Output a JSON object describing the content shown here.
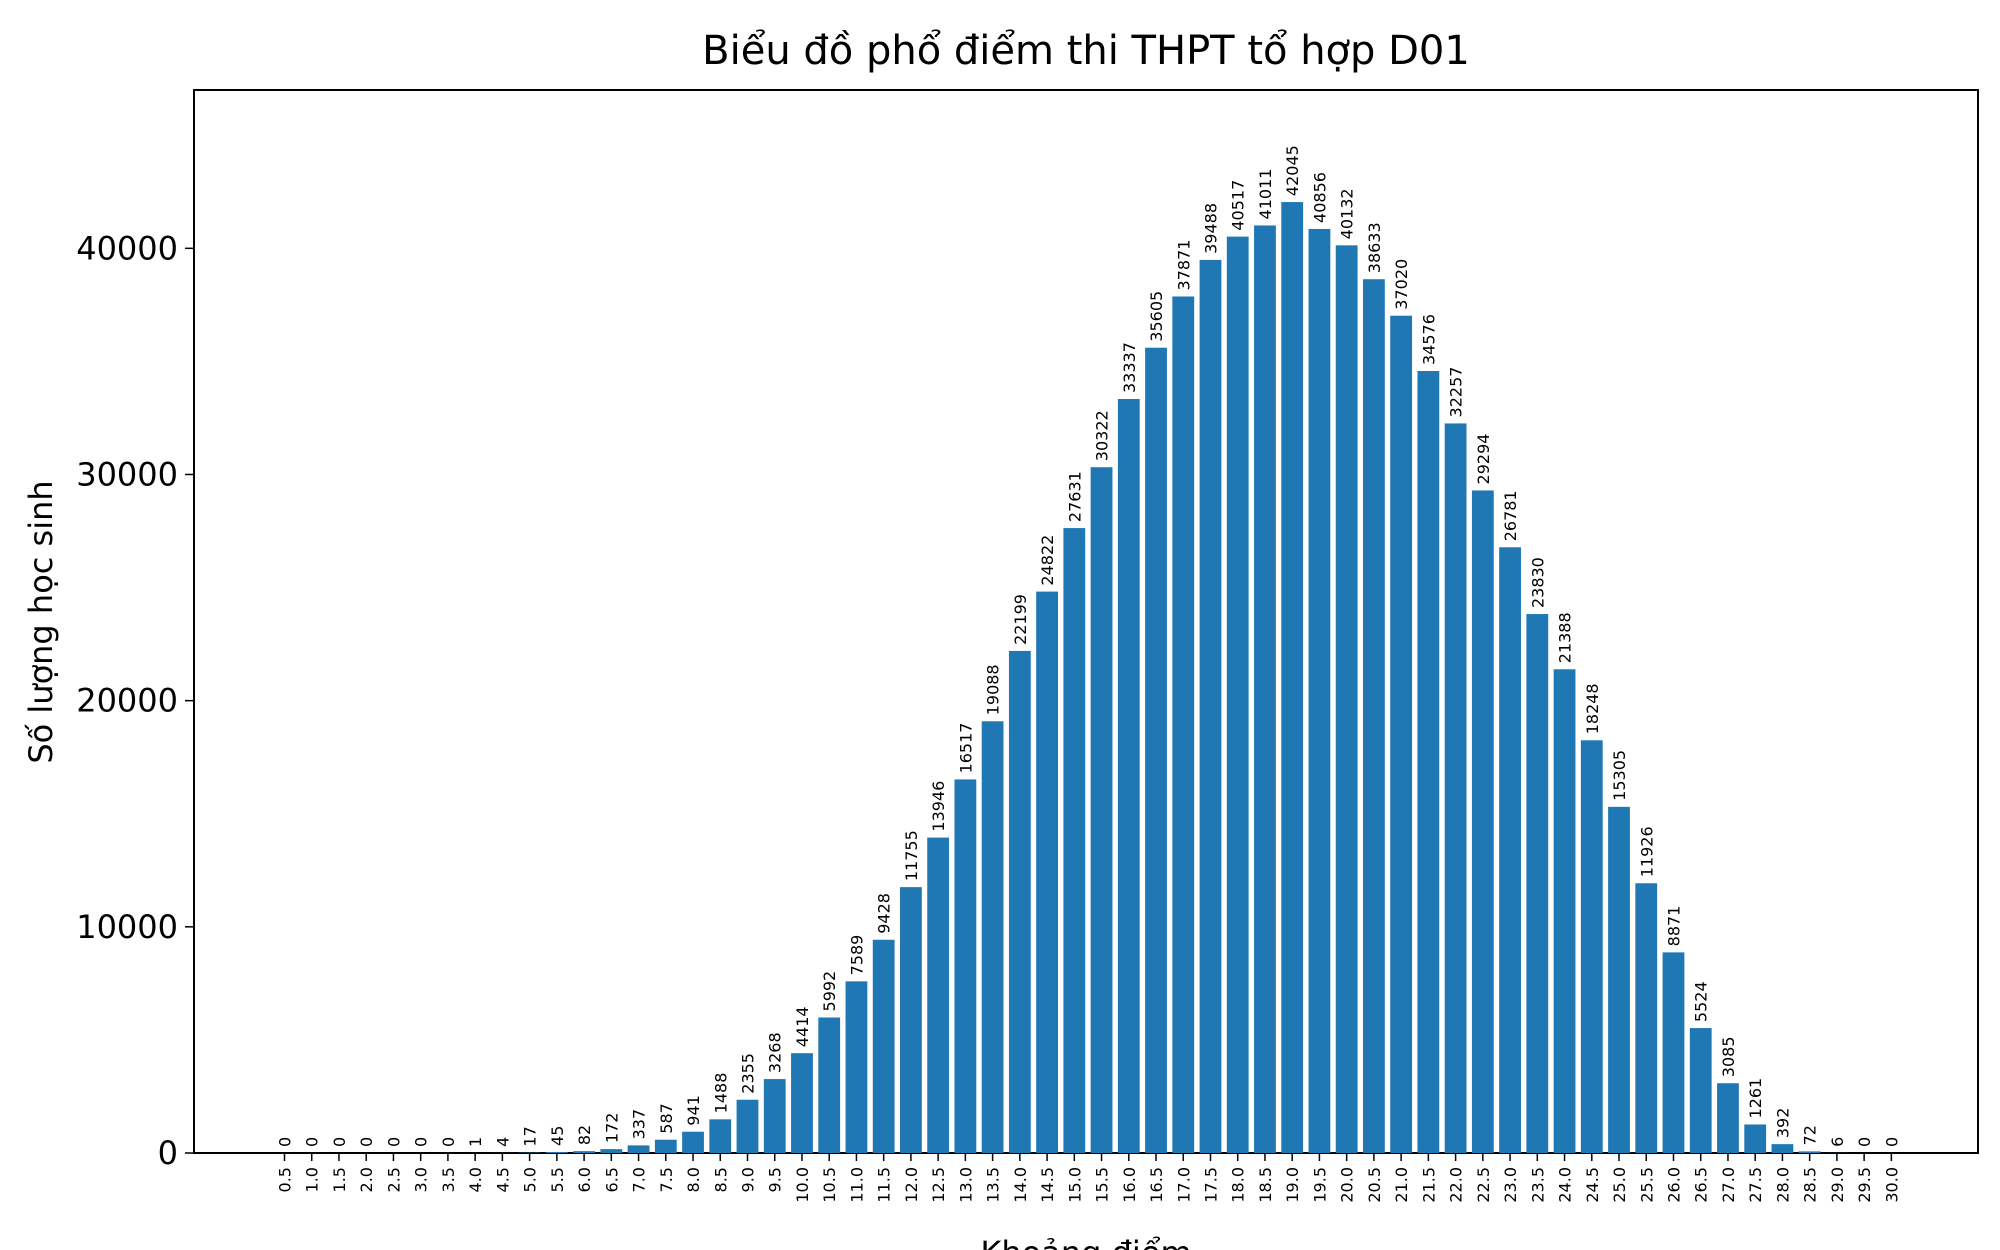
{
  "chart_data": {
    "type": "bar",
    "title": "Biểu đồ phổ điểm thi THPT tổ hợp D01",
    "xlabel": "Khoảng điểm",
    "ylabel": "Số lượng học sinh",
    "categories": [
      "0.5",
      "1.0",
      "1.5",
      "2.0",
      "2.5",
      "3.0",
      "3.5",
      "4.0",
      "4.5",
      "5.0",
      "5.5",
      "6.0",
      "6.5",
      "7.0",
      "7.5",
      "8.0",
      "8.5",
      "9.0",
      "9.5",
      "10.0",
      "10.5",
      "11.0",
      "11.5",
      "12.0",
      "12.5",
      "13.0",
      "13.5",
      "14.0",
      "14.5",
      "15.0",
      "15.5",
      "16.0",
      "16.5",
      "17.0",
      "17.5",
      "18.0",
      "18.5",
      "19.0",
      "19.5",
      "20.0",
      "20.5",
      "21.0",
      "21.5",
      "22.0",
      "22.5",
      "23.0",
      "23.5",
      "24.0",
      "24.5",
      "25.0",
      "25.5",
      "26.0",
      "26.5",
      "27.0",
      "27.5",
      "28.0",
      "28.5",
      "29.0",
      "29.5",
      "30.0"
    ],
    "values": [
      0,
      0,
      0,
      0,
      0,
      0,
      0,
      1,
      4,
      17,
      45,
      82,
      172,
      337,
      587,
      941,
      1488,
      2355,
      3268,
      4414,
      5992,
      7589,
      9428,
      11755,
      13946,
      16517,
      19088,
      22199,
      24822,
      27631,
      30322,
      33337,
      35605,
      37871,
      39488,
      40517,
      41011,
      42045,
      40856,
      40132,
      38633,
      37020,
      34576,
      32257,
      29294,
      26781,
      23830,
      21388,
      18248,
      15305,
      11926,
      8871,
      5524,
      3085,
      1261,
      392,
      72,
      6,
      0,
      0
    ],
    "yticks": [
      0,
      10000,
      20000,
      30000,
      40000
    ],
    "ylim": [
      0,
      47000
    ],
    "bar_color": "#1f77b4",
    "grid": false,
    "legend": false
  }
}
